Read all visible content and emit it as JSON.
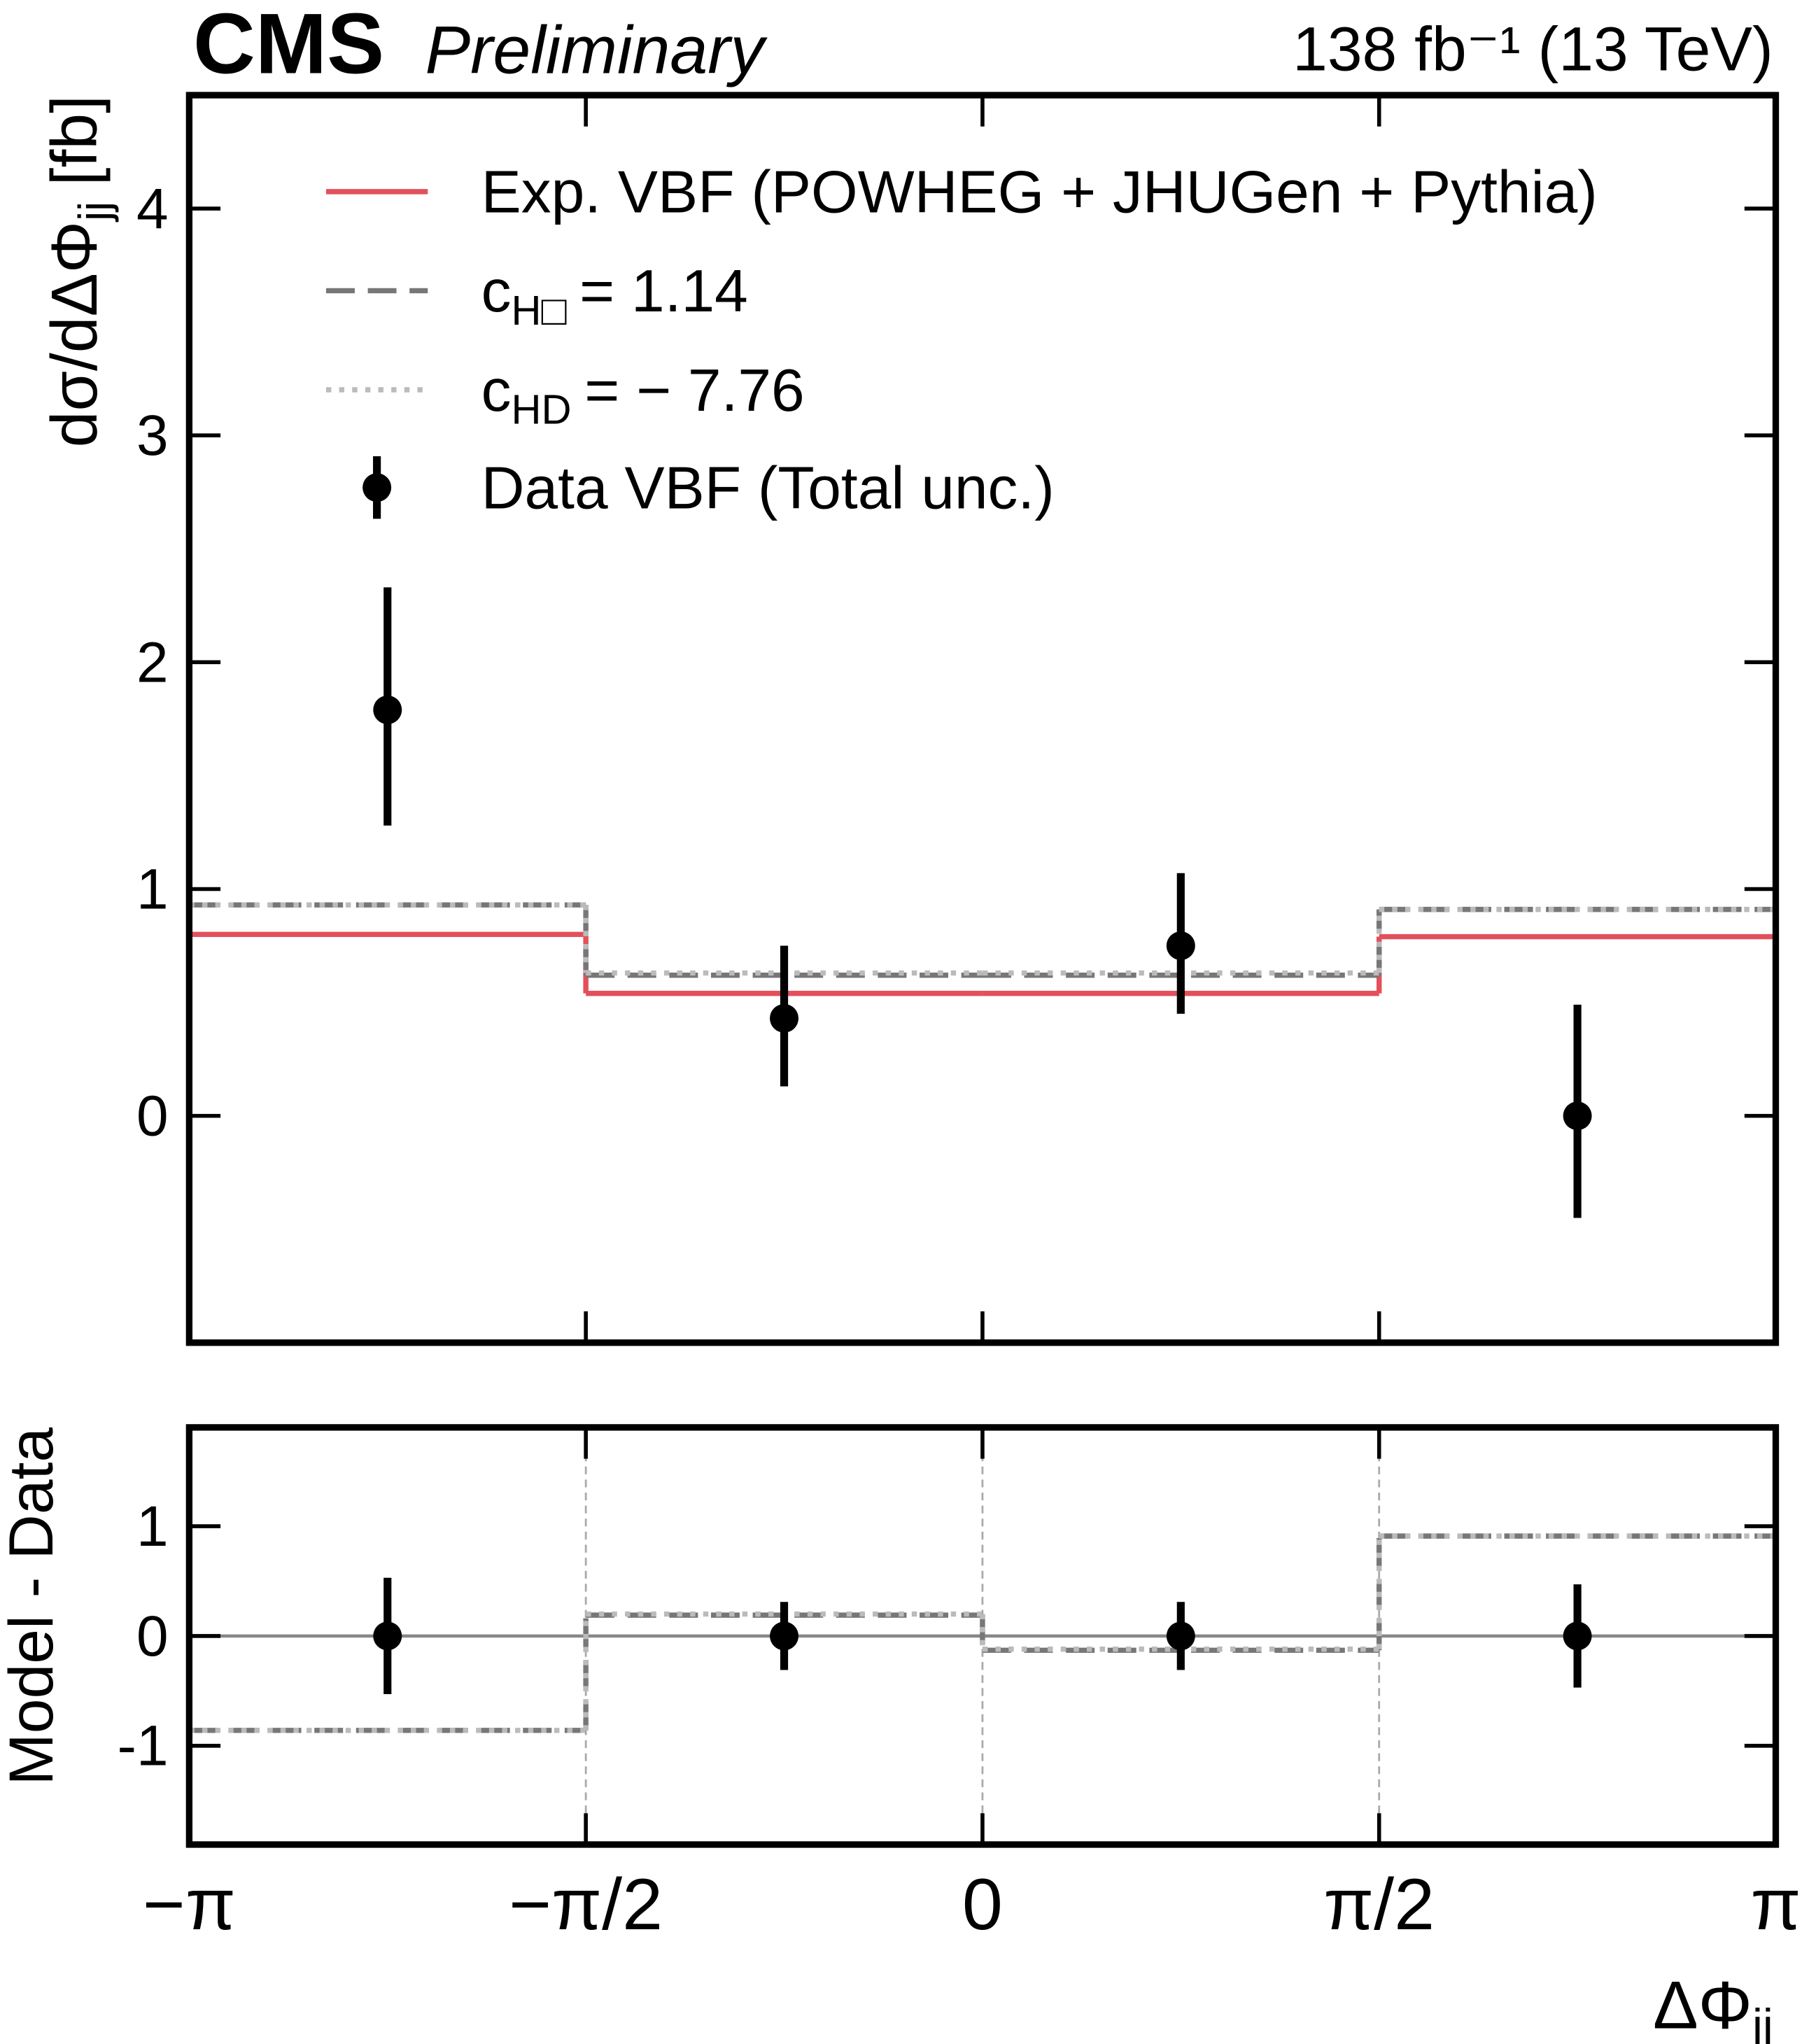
{
  "chart_data": [
    {
      "type": "histogram",
      "experiment": "CMS",
      "status": "Preliminary",
      "lumi": "138 fb⁻¹ (13 TeV)",
      "ylabel": {
        "text": "dσ/dΔΦ",
        "sub": "jj",
        "unit": "[fb]"
      },
      "bins": [
        -3.1416,
        -1.5708,
        0,
        1.5708,
        3.1416
      ],
      "xlim": [
        -3.1416,
        3.1416
      ],
      "ylim": [
        -1,
        4.5
      ],
      "yticks": [
        0,
        1,
        2,
        3,
        4
      ],
      "series": [
        {
          "name": "Exp. VBF (POWHEG + JHUGen + Pythia)",
          "color": "#e3505c",
          "style": "solid",
          "values": [
            0.8,
            0.54,
            0.54,
            0.79
          ]
        },
        {
          "name": "c",
          "name_sub": "H□",
          "name_rest": "= 1.14",
          "color": "#777777",
          "style": "dashed",
          "values": [
            0.93,
            0.62,
            0.62,
            0.91
          ]
        },
        {
          "name": "c",
          "name_sub": "HD",
          "name_rest": "= − 7.76",
          "color": "#bbbbbb",
          "style": "dotted",
          "values": [
            0.93,
            0.63,
            0.63,
            0.91
          ]
        }
      ],
      "data": {
        "name": "Data VBF (Total unc.)",
        "color": "#000000",
        "x": [
          -2.3562,
          -0.7854,
          0.7854,
          2.3562
        ],
        "values": [
          1.79,
          0.43,
          0.75,
          0.0
        ],
        "errors_high": [
          0.54,
          0.32,
          0.32,
          0.49
        ],
        "errors_low": [
          0.51,
          0.3,
          0.3,
          0.45
        ]
      }
    },
    {
      "type": "histogram",
      "ylabel": "Model - Data",
      "xlabel": {
        "text": "ΔΦ",
        "sub": "jj"
      },
      "bins": [
        -3.1416,
        -1.5708,
        0,
        1.5708,
        3.1416
      ],
      "xlim": [
        -3.1416,
        3.1416
      ],
      "ylim": [
        -1.9,
        1.9
      ],
      "yticks": [
        -1,
        0,
        1
      ],
      "xticks": [
        {
          "value": -3.1416,
          "label": "−π"
        },
        {
          "value": -1.5708,
          "label": "−π/2"
        },
        {
          "value": 0,
          "label": "0"
        },
        {
          "value": 1.5708,
          "label": "π/2"
        },
        {
          "value": 3.1416,
          "label": "π"
        }
      ],
      "xgrid": true,
      "reference_line": 0,
      "series": [
        {
          "color": "#777777",
          "style": "dashed",
          "values": [
            -0.86,
            0.19,
            -0.13,
            0.91
          ]
        },
        {
          "color": "#bbbbbb",
          "style": "dotted",
          "values": [
            -0.86,
            0.2,
            -0.12,
            0.91
          ]
        }
      ],
      "data": {
        "color": "#000000",
        "x": [
          -2.3562,
          -0.7854,
          0.7854,
          2.3562
        ],
        "values": [
          0,
          0,
          0,
          0
        ],
        "errors_high": [
          0.53,
          0.31,
          0.31,
          0.47
        ],
        "errors_low": [
          0.53,
          0.31,
          0.31,
          0.47
        ]
      }
    }
  ]
}
